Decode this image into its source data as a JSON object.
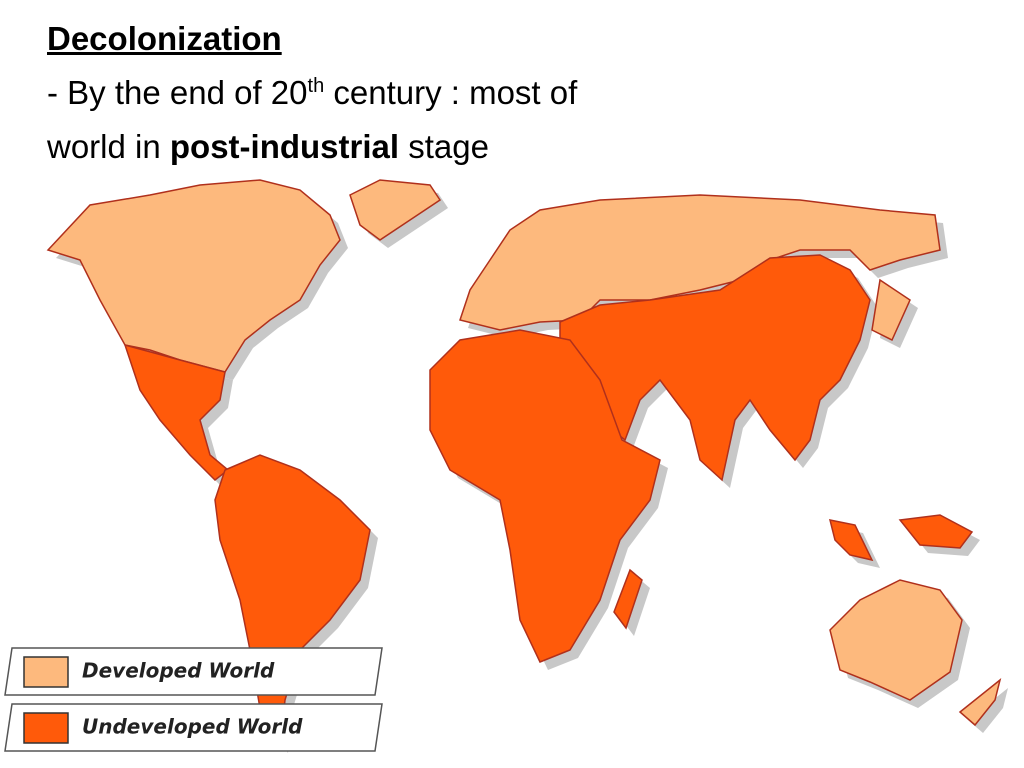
{
  "title": "Decolonization",
  "body": {
    "line1": [
      "- By the end of 20",
      "th",
      " century : most of"
    ],
    "line2": [
      "world in ",
      "post-industrial",
      " stage"
    ]
  },
  "legend": [
    {
      "label": "Developed World",
      "color": "#fdb97d"
    },
    {
      "label": "Undeveloped World",
      "color": "#ff5a0a"
    }
  ]
}
